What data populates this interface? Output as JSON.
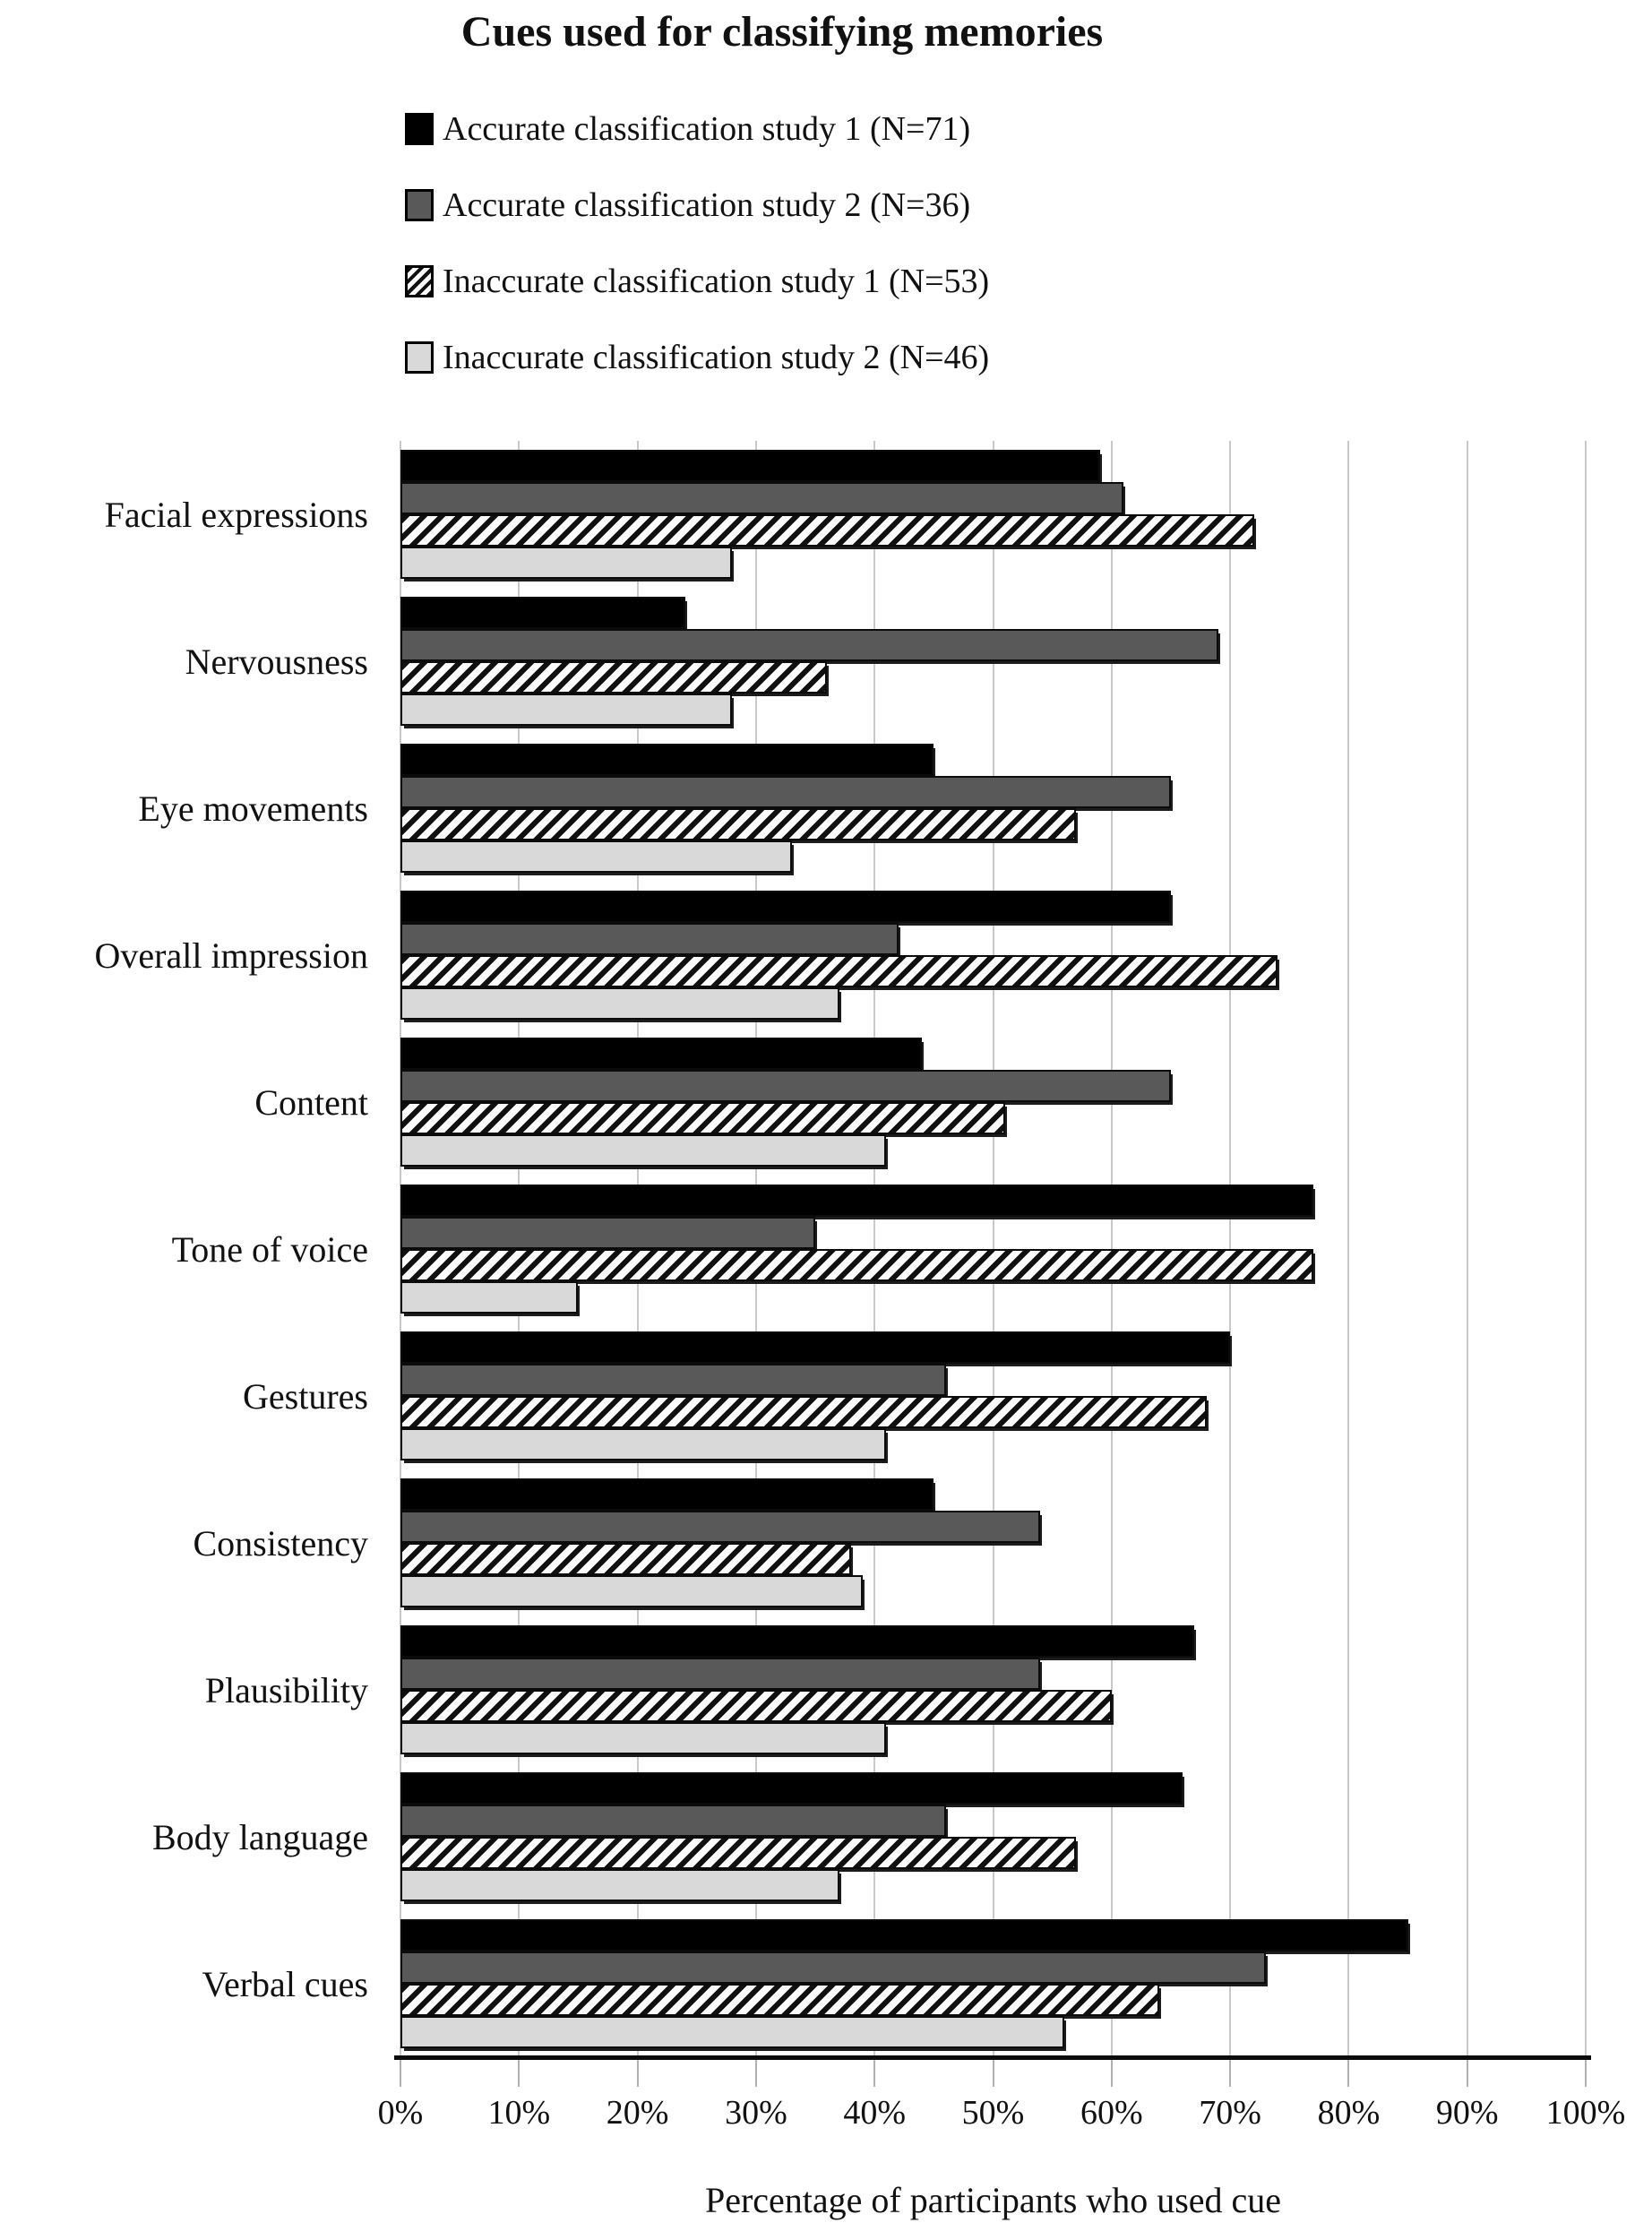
{
  "title": "Cues used for classifying memories",
  "xaxis": {
    "title": "Percentage of participants who used cue"
  },
  "colors": {
    "series_black": "#000000",
    "series_darkgray": "#595959",
    "series_hatch_fg": "#101010",
    "series_lightgray": "#d9d9d9",
    "gridline": "#c9c9c9",
    "axis_line": "#0b0b0b",
    "text": "#111111"
  },
  "chart_data": {
    "type": "bar",
    "orientation": "horizontal",
    "title": "Cues used for classifying memories",
    "xlabel": "Percentage of participants who used cue",
    "ylabel": "",
    "xlim": [
      0,
      100
    ],
    "x_ticks": [
      "0%",
      "10%",
      "20%",
      "30%",
      "40%",
      "50%",
      "60%",
      "70%",
      "80%",
      "90%",
      "100%"
    ],
    "grid": true,
    "legend_position": "top",
    "categories": [
      "Facial expressions",
      "Nervousness",
      "Eye movements",
      "Overall impression",
      "Content",
      "Tone of voice",
      "Gestures",
      "Consistency",
      "Plausibility",
      "Body language",
      "Verbal cues"
    ],
    "series": [
      {
        "name": "Accurate classification study 1 (N=71)",
        "pattern": "solid",
        "color": "#000000",
        "values": [
          59,
          24,
          45,
          65,
          44,
          77,
          70,
          45,
          67,
          66,
          85
        ]
      },
      {
        "name": "Accurate classification study 2 (N=36)",
        "pattern": "solid",
        "color": "#595959",
        "values": [
          61,
          69,
          65,
          42,
          65,
          35,
          46,
          54,
          54,
          46,
          73
        ]
      },
      {
        "name": "Inaccurate classification study 1 (N=53)",
        "pattern": "diagonal-hatch",
        "color": "#101010",
        "values": [
          72,
          36,
          57,
          74,
          51,
          77,
          68,
          38,
          60,
          57,
          64
        ]
      },
      {
        "name": "Inaccurate classification study 2 (N=46)",
        "pattern": "solid",
        "color": "#d9d9d9",
        "values": [
          28,
          28,
          33,
          37,
          41,
          15,
          41,
          39,
          41,
          37,
          56
        ]
      }
    ]
  }
}
